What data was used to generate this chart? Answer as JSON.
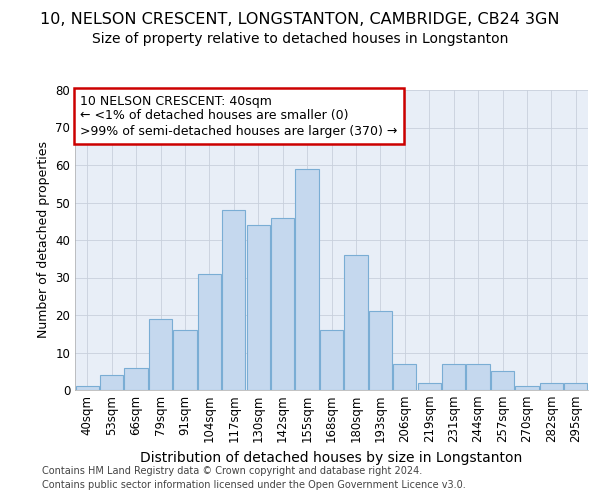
{
  "title_line1": "10, NELSON CRESCENT, LONGSTANTON, CAMBRIDGE, CB24 3GN",
  "title_line2": "Size of property relative to detached houses in Longstanton",
  "xlabel": "Distribution of detached houses by size in Longstanton",
  "ylabel": "Number of detached properties",
  "categories": [
    "40sqm",
    "53sqm",
    "66sqm",
    "79sqm",
    "91sqm",
    "104sqm",
    "117sqm",
    "130sqm",
    "142sqm",
    "155sqm",
    "168sqm",
    "180sqm",
    "193sqm",
    "206sqm",
    "219sqm",
    "231sqm",
    "244sqm",
    "257sqm",
    "270sqm",
    "282sqm",
    "295sqm"
  ],
  "values": [
    1,
    4,
    6,
    19,
    16,
    31,
    48,
    44,
    46,
    59,
    16,
    36,
    21,
    7,
    2,
    7,
    7,
    5,
    1,
    2,
    2
  ],
  "bar_color": "#c5d8ee",
  "bar_edge_color": "#7aadd4",
  "annotation_box_text": "10 NELSON CRESCENT: 40sqm\n← <1% of detached houses are smaller (0)\n>99% of semi-detached houses are larger (370) →",
  "annotation_box_color": "#ffffff",
  "annotation_box_edge_color": "#cc0000",
  "ylim": [
    0,
    80
  ],
  "yticks": [
    0,
    10,
    20,
    30,
    40,
    50,
    60,
    70,
    80
  ],
  "grid_color": "#c8d0dc",
  "plot_bg_color": "#e8eef7",
  "footer_line1": "Contains HM Land Registry data © Crown copyright and database right 2024.",
  "footer_line2": "Contains public sector information licensed under the Open Government Licence v3.0.",
  "title_fontsize": 11.5,
  "subtitle_fontsize": 10,
  "xlabel_fontsize": 10,
  "ylabel_fontsize": 9,
  "tick_fontsize": 8.5,
  "footer_fontsize": 7,
  "annotation_fontsize": 9
}
